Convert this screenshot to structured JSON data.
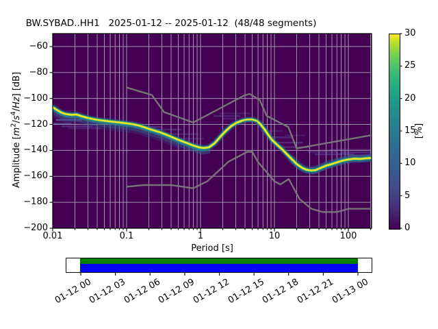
{
  "title": "BW.SYBAD..HH1   2025-01-12 -- 2025-01-12  (48/48 segments)",
  "axes": {
    "xlabel": "Period [s]",
    "x_ticks": [
      "0.01",
      "0.1",
      "1",
      "10",
      "100"
    ],
    "y_ticks": [
      "−60",
      "−80",
      "−100",
      "−120",
      "−140",
      "−160",
      "−180",
      "−200"
    ],
    "ylabel_segments": [
      [
        "Amplitude [",
        "n"
      ],
      [
        "m",
        "i"
      ],
      [
        "2",
        "s"
      ],
      [
        "/",
        "n"
      ],
      [
        "s",
        "i"
      ],
      [
        "4",
        "s"
      ],
      [
        "/",
        "n"
      ],
      [
        "Hz",
        "i"
      ],
      [
        "]",
        "n"
      ],
      [
        " [dB]",
        "n"
      ]
    ]
  },
  "colorbar": {
    "label": "[%]",
    "ticks": [
      "0",
      "5",
      "10",
      "15",
      "20",
      "25",
      "30"
    ],
    "colormap": "viridis"
  },
  "timeline": {
    "labels": [
      "01-12 00",
      "01-12 03",
      "01-12 06",
      "01-12 09",
      "01-12 12",
      "01-12 15",
      "01-12 18",
      "01-12 21",
      "01-13 00"
    ],
    "data_stripe_color": "#008000",
    "segment_stripe_color": "#0000ff"
  },
  "colors": {
    "background": "#440154",
    "grid": "#b4aec0",
    "noise_model": "#7a7a7a",
    "mode_line": "#f8e621",
    "band_green": "#44bf70",
    "band_teal": "#21918c",
    "band_blue": "#355f8d",
    "streak_blue": "#7583cf",
    "frame": "#000000"
  },
  "chart_data": {
    "type": "heatmap",
    "title": "BW.SYBAD..HH1   2025-01-12 -- 2025-01-12  (48/48 segments)",
    "xlabel": "Period [s]",
    "ylabel": "Amplitude [m^2/s^4/Hz] [dB]",
    "xscale": "log",
    "xlim": [
      0.01,
      206
    ],
    "ylim": [
      -200,
      -50
    ],
    "grid": true,
    "colorbar_label": "[%]",
    "colorbar_range": [
      0,
      30
    ],
    "segments_used": "48/48",
    "psd_mode_curve": [
      [
        0.01,
        -106.8
      ],
      [
        0.0115,
        -109.0
      ],
      [
        0.013,
        -110.8
      ],
      [
        0.015,
        -112.0
      ],
      [
        0.018,
        -112.6
      ],
      [
        0.021,
        -112.4
      ],
      [
        0.025,
        -113.8
      ],
      [
        0.03,
        -115.0
      ],
      [
        0.036,
        -116.0
      ],
      [
        0.043,
        -116.7
      ],
      [
        0.052,
        -117.3
      ],
      [
        0.065,
        -118.0
      ],
      [
        0.08,
        -118.5
      ],
      [
        0.1,
        -119.2
      ],
      [
        0.12,
        -119.8
      ],
      [
        0.15,
        -121.0
      ],
      [
        0.18,
        -122.5
      ],
      [
        0.22,
        -124.2
      ],
      [
        0.27,
        -125.7
      ],
      [
        0.33,
        -127.5
      ],
      [
        0.42,
        -130.0
      ],
      [
        0.52,
        -132.2
      ],
      [
        0.65,
        -134.3
      ],
      [
        0.8,
        -136.3
      ],
      [
        0.95,
        -137.6
      ],
      [
        1.1,
        -138.2
      ],
      [
        1.3,
        -137.6
      ],
      [
        1.55,
        -134.5
      ],
      [
        1.85,
        -129.5
      ],
      [
        2.2,
        -125.0
      ],
      [
        2.6,
        -121.3
      ],
      [
        3.1,
        -118.6
      ],
      [
        3.7,
        -117.0
      ],
      [
        4.3,
        -116.3
      ],
      [
        5.0,
        -116.3
      ],
      [
        5.8,
        -117.4
      ],
      [
        6.5,
        -120.0
      ],
      [
        7.3,
        -123.5
      ],
      [
        8.2,
        -127.8
      ],
      [
        9.3,
        -132.0
      ],
      [
        10.8,
        -135.5
      ],
      [
        12.5,
        -138.8
      ],
      [
        14.5,
        -142.5
      ],
      [
        17.0,
        -146.5
      ],
      [
        20.0,
        -150.5
      ],
      [
        23.5,
        -153.3
      ],
      [
        27.0,
        -154.9
      ],
      [
        31.0,
        -155.5
      ],
      [
        36.0,
        -155.2
      ],
      [
        42.0,
        -153.6
      ],
      [
        50.0,
        -151.8
      ],
      [
        60.0,
        -150.5
      ],
      [
        72.0,
        -149.0
      ],
      [
        85.0,
        -147.8
      ],
      [
        100.0,
        -147.0
      ],
      [
        120.0,
        -146.4
      ],
      [
        145.0,
        -146.6
      ],
      [
        170.0,
        -146.2
      ],
      [
        200.0,
        -145.9
      ]
    ],
    "high_noise_model": [
      [
        0.1,
        -91.5
      ],
      [
        0.22,
        -97.4
      ],
      [
        0.32,
        -110.5
      ],
      [
        0.8,
        -118.5
      ],
      [
        3.8,
        -98.0
      ],
      [
        4.6,
        -96.5
      ],
      [
        6.3,
        -101.0
      ],
      [
        7.9,
        -113.5
      ],
      [
        15.4,
        -122.0
      ],
      [
        20.0,
        -138.5
      ],
      [
        206.0,
        -128.3
      ]
    ],
    "low_noise_model": [
      [
        0.1,
        -168.0
      ],
      [
        0.17,
        -166.7
      ],
      [
        0.4,
        -166.7
      ],
      [
        0.8,
        -169.2
      ],
      [
        1.24,
        -163.7
      ],
      [
        2.4,
        -148.6
      ],
      [
        4.3,
        -141.1
      ],
      [
        5.0,
        -141.1
      ],
      [
        6.0,
        -149.0
      ],
      [
        10.0,
        -163.8
      ],
      [
        12.0,
        -166.2
      ],
      [
        15.6,
        -162.1
      ],
      [
        21.9,
        -177.5
      ],
      [
        31.6,
        -185.0
      ],
      [
        45.0,
        -187.5
      ],
      [
        70.0,
        -187.5
      ],
      [
        101.0,
        -185.0
      ],
      [
        154.0,
        -185.0
      ],
      [
        206.0,
        -185.0
      ]
    ],
    "faint_streaks": [
      [
        0.13,
        0.3,
        -122.0,
        0.3
      ],
      [
        0.17,
        0.55,
        -124.0,
        0.28
      ],
      [
        0.3,
        0.95,
        -127.5,
        0.22
      ],
      [
        0.45,
        1.1,
        -131.0,
        0.18
      ],
      [
        1.5,
        3.5,
        -113.5,
        0.25
      ],
      [
        1.8,
        4.8,
        -111.5,
        0.18
      ],
      [
        2.0,
        3.0,
        -115.5,
        0.22
      ],
      [
        6.5,
        13,
        -125.0,
        0.22
      ],
      [
        8,
        18,
        -130.0,
        0.28
      ],
      [
        9,
        24,
        -134.0,
        0.3
      ],
      [
        11,
        30,
        -137.5,
        0.25
      ],
      [
        14,
        26,
        -128.5,
        0.16
      ],
      [
        28,
        70,
        -141.0,
        0.25
      ],
      [
        35,
        120,
        -143.0,
        0.3
      ],
      [
        55,
        200,
        -139.5,
        0.22
      ],
      [
        80,
        206,
        -141.5,
        0.3
      ],
      [
        100,
        206,
        -144.0,
        0.35
      ],
      [
        0.011,
        0.025,
        -116.5,
        0.55
      ],
      [
        0.01,
        0.018,
        -119.5,
        0.45
      ],
      [
        0.013,
        0.035,
        -121.5,
        0.3
      ],
      [
        0.016,
        0.045,
        -123.0,
        0.2
      ]
    ]
  }
}
